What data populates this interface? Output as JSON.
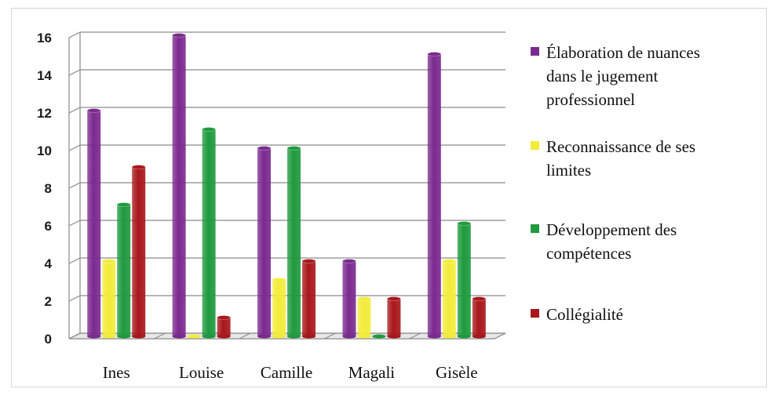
{
  "chart_data": {
    "type": "bar",
    "title": "",
    "xlabel": "",
    "ylabel": "",
    "categories": [
      "Ines",
      "Louise",
      "Camille",
      "Magali",
      "Gisèle"
    ],
    "ylim": [
      0,
      16
    ],
    "yticks": [
      0,
      2,
      4,
      6,
      8,
      10,
      12,
      14,
      16
    ],
    "grid": true,
    "legend_position": "right",
    "series": [
      {
        "name": "Élaboration de nuances dans le jugement professionnel",
        "legend_lines": [
          "Élaboration de nuances",
          "dans le jugement",
          "professionnel"
        ],
        "color": "#7b2a8f",
        "values": [
          12,
          16,
          10,
          4,
          15
        ]
      },
      {
        "name": "Reconnaissance de ses limites",
        "legend_lines": [
          "Reconnaissance de ses",
          "limites"
        ],
        "color": "#f2ec3a",
        "values": [
          4,
          0,
          3,
          2,
          4
        ]
      },
      {
        "name": "Développement des compétences",
        "legend_lines": [
          "Développement des",
          "compétences"
        ],
        "color": "#1f9a3e",
        "values": [
          7,
          11,
          10,
          0,
          6
        ]
      },
      {
        "name": "Collégialité",
        "legend_lines": [
          "Collégialité"
        ],
        "color": "#a8171b",
        "values": [
          9,
          1,
          4,
          2,
          2
        ]
      }
    ]
  }
}
